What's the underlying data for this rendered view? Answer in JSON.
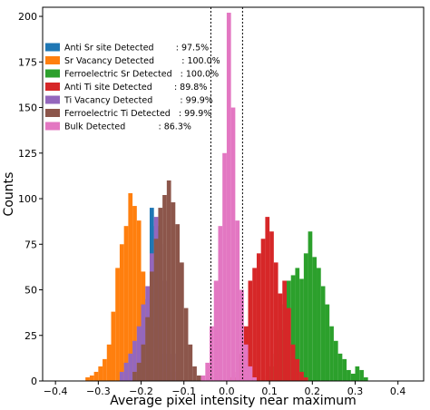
{
  "chart_data": {
    "type": "bar",
    "xlabel": "Average pixel intensity near maximum",
    "ylabel": "Counts",
    "xlim": [
      -0.43,
      0.46
    ],
    "ylim": [
      0,
      205
    ],
    "xticks": [
      -0.4,
      -0.3,
      -0.2,
      -0.1,
      0.0,
      0.1,
      0.2,
      0.3,
      0.4
    ],
    "xtick_labels": [
      "−0.4",
      "−0.3",
      "−0.2",
      "−0.1",
      "0.0",
      "0.1",
      "0.2",
      "0.3",
      "0.4"
    ],
    "yticks": [
      0,
      25,
      50,
      75,
      100,
      125,
      150,
      175,
      200
    ],
    "ytick_labels": [
      "0",
      "25",
      "50",
      "75",
      "100",
      "125",
      "150",
      "175",
      "200"
    ],
    "vlines": [
      -0.037,
      0.037
    ],
    "bin_width": 0.01,
    "legend_position": "upper-left",
    "series": [
      {
        "name": "Anti Sr site Detected",
        "label": "Anti Sr site Detected        : 97.5%",
        "color": "#1f77b4",
        "bins": [
          [
            -0.205,
            5
          ],
          [
            -0.195,
            20
          ],
          [
            -0.185,
            45
          ],
          [
            -0.175,
            95
          ],
          [
            -0.165,
            85
          ],
          [
            -0.155,
            40
          ],
          [
            -0.145,
            15
          ],
          [
            -0.135,
            5
          ]
        ]
      },
      {
        "name": "Sr Vacancy Detected",
        "label": "Sr Vacancy Detected          : 100.0%",
        "color": "#ff7f0e",
        "bins": [
          [
            -0.325,
            2
          ],
          [
            -0.315,
            3
          ],
          [
            -0.305,
            5
          ],
          [
            -0.295,
            8
          ],
          [
            -0.285,
            12
          ],
          [
            -0.275,
            20
          ],
          [
            -0.265,
            38
          ],
          [
            -0.255,
            62
          ],
          [
            -0.245,
            75
          ],
          [
            -0.235,
            85
          ],
          [
            -0.225,
            103
          ],
          [
            -0.215,
            96
          ],
          [
            -0.205,
            88
          ],
          [
            -0.195,
            60
          ],
          [
            -0.185,
            42
          ],
          [
            -0.175,
            30
          ],
          [
            -0.165,
            18
          ],
          [
            -0.155,
            10
          ],
          [
            -0.145,
            5
          ],
          [
            -0.135,
            2
          ]
        ]
      },
      {
        "name": "Ferroelectric Sr Detected",
        "label": "Ferroelectric Sr Detected   : 100.0%",
        "color": "#2ca02c",
        "bins": [
          [
            0.095,
            3
          ],
          [
            0.105,
            8
          ],
          [
            0.115,
            15
          ],
          [
            0.125,
            28
          ],
          [
            0.135,
            42
          ],
          [
            0.145,
            55
          ],
          [
            0.155,
            58
          ],
          [
            0.165,
            62
          ],
          [
            0.175,
            56
          ],
          [
            0.185,
            70
          ],
          [
            0.195,
            82
          ],
          [
            0.205,
            68
          ],
          [
            0.215,
            62
          ],
          [
            0.225,
            52
          ],
          [
            0.235,
            42
          ],
          [
            0.245,
            30
          ],
          [
            0.255,
            22
          ],
          [
            0.265,
            15
          ],
          [
            0.275,
            12
          ],
          [
            0.285,
            6
          ],
          [
            0.295,
            4
          ],
          [
            0.305,
            8
          ],
          [
            0.315,
            6
          ],
          [
            0.325,
            2
          ]
        ]
      },
      {
        "name": "Anti Ti site Detected",
        "label": "Anti Ti site Detected        : 89.8%",
        "color": "#d62728",
        "bins": [
          [
            0.015,
            2
          ],
          [
            0.025,
            5
          ],
          [
            0.035,
            15
          ],
          [
            0.045,
            30
          ],
          [
            0.055,
            55
          ],
          [
            0.065,
            62
          ],
          [
            0.075,
            70
          ],
          [
            0.085,
            78
          ],
          [
            0.095,
            90
          ],
          [
            0.105,
            82
          ],
          [
            0.115,
            65
          ],
          [
            0.125,
            48
          ],
          [
            0.135,
            55
          ],
          [
            0.145,
            40
          ],
          [
            0.155,
            20
          ],
          [
            0.165,
            12
          ],
          [
            0.175,
            5
          ],
          [
            0.185,
            2
          ]
        ]
      },
      {
        "name": "Ti Vacancy Detected",
        "label": "Ti Vacancy Detected          : 99.9%",
        "color": "#9467bd",
        "bins": [
          [
            -0.245,
            5
          ],
          [
            -0.235,
            10
          ],
          [
            -0.225,
            15
          ],
          [
            -0.215,
            22
          ],
          [
            -0.205,
            30
          ],
          [
            -0.195,
            42
          ],
          [
            -0.185,
            52
          ],
          [
            -0.175,
            70
          ],
          [
            -0.165,
            90
          ],
          [
            -0.155,
            75
          ],
          [
            -0.145,
            55
          ],
          [
            -0.135,
            30
          ],
          [
            -0.125,
            15
          ],
          [
            -0.115,
            5
          ]
        ]
      },
      {
        "name": "Ferroelectric Ti Detected",
        "label": "Ferroelectric Ti Detected   : 99.9%",
        "color": "#8c564b",
        "bins": [
          [
            -0.215,
            5
          ],
          [
            -0.205,
            10
          ],
          [
            -0.195,
            20
          ],
          [
            -0.185,
            35
          ],
          [
            -0.175,
            60
          ],
          [
            -0.165,
            78
          ],
          [
            -0.155,
            95
          ],
          [
            -0.145,
            102
          ],
          [
            -0.135,
            110
          ],
          [
            -0.125,
            98
          ],
          [
            -0.115,
            86
          ],
          [
            -0.105,
            65
          ],
          [
            -0.095,
            40
          ],
          [
            -0.085,
            20
          ],
          [
            -0.075,
            8
          ],
          [
            -0.065,
            3
          ]
        ]
      },
      {
        "name": "Bulk Detected",
        "label": "Bulk Detected            : 86.3%",
        "color": "#e377c2",
        "bins": [
          [
            -0.055,
            3
          ],
          [
            -0.045,
            10
          ],
          [
            -0.035,
            30
          ],
          [
            -0.025,
            55
          ],
          [
            -0.015,
            85
          ],
          [
            -0.005,
            125
          ],
          [
            0.005,
            202
          ],
          [
            0.015,
            150
          ],
          [
            0.025,
            88
          ],
          [
            0.035,
            50
          ],
          [
            0.045,
            20
          ],
          [
            0.055,
            8
          ],
          [
            0.065,
            2
          ]
        ]
      }
    ]
  }
}
